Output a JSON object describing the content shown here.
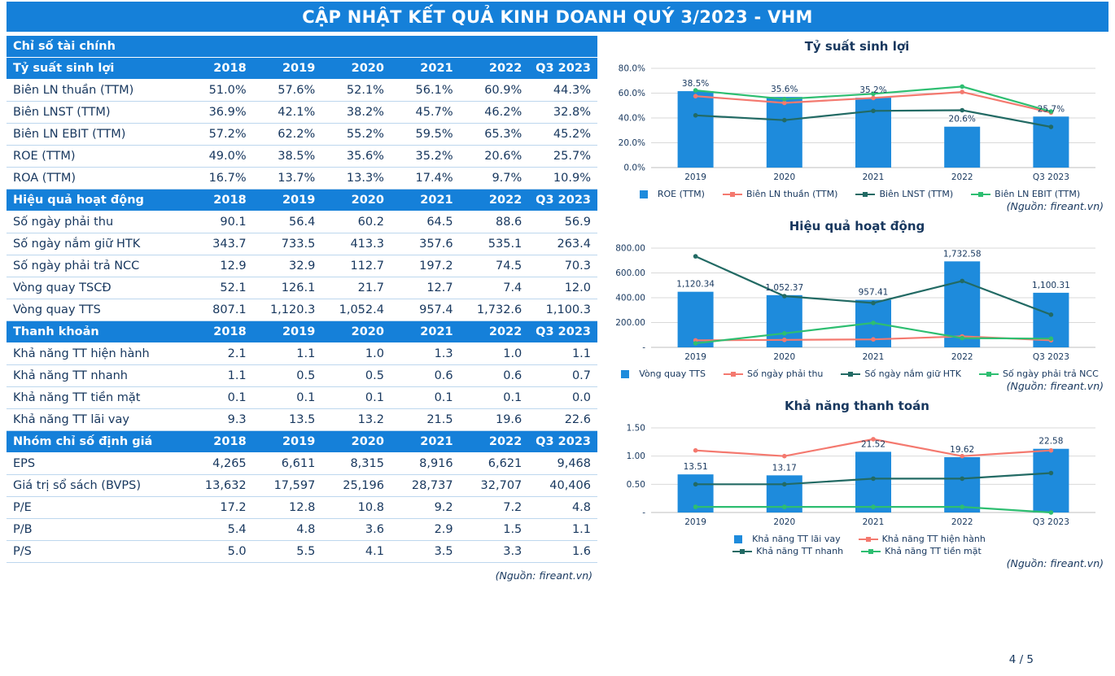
{
  "page": {
    "title": "CẬP NHẬT KẾT QUẢ KINH DOANH QUÝ 3/2023 - VHM",
    "page_number": "4 / 5"
  },
  "colors": {
    "header_blue": "#1580D9",
    "bar_blue": "#1E8BDC",
    "salmon": "#F4796F",
    "dark_teal": "#226A64",
    "green": "#2EBE71",
    "navy": "#17375E",
    "row_border": "#BDD7EE",
    "grid": "#D9D9D9"
  },
  "table": {
    "title": "Chỉ số tài chính",
    "source_note": "(Nguồn: fireant.vn)",
    "col_headers": [
      "2018",
      "2019",
      "2020",
      "2021",
      "2022",
      "Q3 2023"
    ],
    "sections": [
      {
        "header": "Tỷ suất sinh lợi",
        "rows": [
          {
            "label": "Biên LN thuần (TTM)",
            "values": [
              "51.0%",
              "57.6%",
              "52.1%",
              "56.1%",
              "60.9%",
              "44.3%"
            ]
          },
          {
            "label": "Biên LNST (TTM)",
            "values": [
              "36.9%",
              "42.1%",
              "38.2%",
              "45.7%",
              "46.2%",
              "32.8%"
            ]
          },
          {
            "label": "Biên LN EBIT (TTM)",
            "values": [
              "57.2%",
              "62.2%",
              "55.2%",
              "59.5%",
              "65.3%",
              "45.2%"
            ]
          },
          {
            "label": "ROE (TTM)",
            "values": [
              "49.0%",
              "38.5%",
              "35.6%",
              "35.2%",
              "20.6%",
              "25.7%"
            ]
          },
          {
            "label": "ROA (TTM)",
            "values": [
              "16.7%",
              "13.7%",
              "13.3%",
              "17.4%",
              "9.7%",
              "10.9%"
            ]
          }
        ]
      },
      {
        "header": "Hiệu quả hoạt động",
        "rows": [
          {
            "label": "Số ngày phải thu",
            "values": [
              "90.1",
              "56.4",
              "60.2",
              "64.5",
              "88.6",
              "56.9"
            ]
          },
          {
            "label": "Số ngày nắm giữ HTK",
            "values": [
              "343.7",
              "733.5",
              "413.3",
              "357.6",
              "535.1",
              "263.4"
            ]
          },
          {
            "label": "Số ngày phải trả NCC",
            "values": [
              "12.9",
              "32.9",
              "112.7",
              "197.2",
              "74.5",
              "70.3"
            ]
          },
          {
            "label": "Vòng quay TSCĐ",
            "values": [
              "52.1",
              "126.1",
              "21.7",
              "12.7",
              "7.4",
              "12.0"
            ]
          },
          {
            "label": "Vòng quay TTS",
            "values": [
              "807.1",
              "1,120.3",
              "1,052.4",
              "957.4",
              "1,732.6",
              "1,100.3"
            ]
          }
        ]
      },
      {
        "header": "Thanh khoản",
        "rows": [
          {
            "label": "Khả năng TT hiện hành",
            "values": [
              "2.1",
              "1.1",
              "1.0",
              "1.3",
              "1.0",
              "1.1"
            ]
          },
          {
            "label": "Khả năng TT nhanh",
            "values": [
              "1.1",
              "0.5",
              "0.5",
              "0.6",
              "0.6",
              "0.7"
            ]
          },
          {
            "label": "Khả năng TT tiền mặt",
            "values": [
              "0.1",
              "0.1",
              "0.1",
              "0.1",
              "0.1",
              "0.0"
            ]
          },
          {
            "label": "Khả năng TT lãi vay",
            "values": [
              "9.3",
              "13.5",
              "13.2",
              "21.5",
              "19.6",
              "22.6"
            ]
          }
        ]
      },
      {
        "header": "Nhóm chỉ số định giá",
        "rows": [
          {
            "label": "EPS",
            "values": [
              "4,265",
              "6,611",
              "8,315",
              "8,916",
              "6,621",
              "9,468"
            ]
          },
          {
            "label": "Giá trị sổ sách (BVPS)",
            "values": [
              "13,632",
              "17,597",
              "25,196",
              "28,737",
              "32,707",
              "40,406"
            ]
          },
          {
            "label": "P/E",
            "values": [
              "17.2",
              "12.8",
              "10.8",
              "9.2",
              "7.2",
              "4.8"
            ]
          },
          {
            "label": "P/B",
            "values": [
              "5.4",
              "4.8",
              "3.6",
              "2.9",
              "1.5",
              "1.1"
            ]
          },
          {
            "label": "P/S",
            "values": [
              "5.0",
              "5.5",
              "4.1",
              "3.5",
              "3.3",
              "1.6"
            ]
          }
        ]
      }
    ]
  },
  "chart_data": [
    {
      "id": "ty-suat-sinh-loi",
      "type": "bar",
      "title": "Tỷ suất sinh lợi",
      "categories": [
        "2019",
        "2020",
        "2021",
        "2022",
        "Q3 2023"
      ],
      "y_ticks": [
        "0.0%",
        "20.0%",
        "40.0%",
        "60.0%",
        "80.0%"
      ],
      "ylim": [
        0,
        80
      ],
      "bars": {
        "name": "ROE (TTM)",
        "values": [
          38.5,
          35.6,
          35.2,
          20.6,
          25.7
        ],
        "labels": [
          "38.5%",
          "35.6%",
          "35.2%",
          "20.6%",
          "25.7%"
        ],
        "axis_max": 50,
        "color": "#1E8BDC"
      },
      "lines": [
        {
          "name": "Biên LN thuần (TTM)",
          "values": [
            57.6,
            52.1,
            56.1,
            60.9,
            44.3
          ],
          "color": "#F4796F"
        },
        {
          "name": "Biên LNST (TTM)",
          "values": [
            42.1,
            38.2,
            45.7,
            46.2,
            32.8
          ],
          "color": "#226A64"
        },
        {
          "name": "Biên LN EBIT (TTM)",
          "values": [
            62.2,
            55.2,
            59.5,
            65.3,
            45.2
          ],
          "color": "#2EBE71"
        }
      ],
      "legend_rows": [
        [
          {
            "label": "ROE (TTM)",
            "marker": "bar",
            "color": "#1E8BDC"
          },
          {
            "label": "Biên LN thuần (TTM)",
            "marker": "line",
            "color": "#F4796F"
          },
          {
            "label": "Biên LNST (TTM)",
            "marker": "line",
            "color": "#226A64"
          },
          {
            "label": "Biên LN EBIT (TTM)",
            "marker": "line",
            "color": "#2EBE71"
          }
        ]
      ],
      "source_note": "(Nguồn: fireant.vn)"
    },
    {
      "id": "hieu-qua-hoat-dong",
      "type": "bar",
      "title": "Hiệu quả hoạt động",
      "categories": [
        "2019",
        "2020",
        "2021",
        "2022",
        "Q3 2023"
      ],
      "y_ticks": [
        "-",
        "200.00",
        "400.00",
        "600.00",
        "800.00"
      ],
      "ylim": [
        0,
        800
      ],
      "bars": {
        "name": "Vòng quay TTS",
        "values": [
          1120.34,
          1052.37,
          957.41,
          1732.58,
          1100.31
        ],
        "labels": [
          "1,120.34",
          "1,052.37",
          "957.41",
          "1,732.58",
          "1,100.31"
        ],
        "axis_max": 2000,
        "color": "#1E8BDC"
      },
      "lines": [
        {
          "name": "Số ngày phải thu",
          "values": [
            56.4,
            60.2,
            64.5,
            88.6,
            56.9
          ],
          "color": "#F4796F"
        },
        {
          "name": "Số ngày nắm giữ HTK",
          "values": [
            733.5,
            413.3,
            357.6,
            535.1,
            263.4
          ],
          "color": "#226A64"
        },
        {
          "name": "Số ngày phải trả NCC",
          "values": [
            32.9,
            112.7,
            197.2,
            74.5,
            70.3
          ],
          "color": "#2EBE71"
        }
      ],
      "legend_rows": [
        [
          {
            "label": "Vòng quay TTS",
            "marker": "bar",
            "color": "#1E8BDC"
          },
          {
            "label": "Số ngày phải thu",
            "marker": "line",
            "color": "#F4796F"
          },
          {
            "label": "Số ngày nắm giữ HTK",
            "marker": "line",
            "color": "#226A64"
          },
          {
            "label": "Số ngày phải trả NCC",
            "marker": "line",
            "color": "#2EBE71"
          }
        ]
      ],
      "source_note": "(Nguồn: fireant.vn)"
    },
    {
      "id": "kha-nang-thanh-toan",
      "type": "bar",
      "title": "Khả năng thanh toán",
      "categories": [
        "2019",
        "2020",
        "2021",
        "2022",
        "Q3 2023"
      ],
      "y_ticks": [
        "-",
        "0.50",
        "1.00",
        "1.50"
      ],
      "ylim": [
        0,
        1.5
      ],
      "bars": {
        "name": "Khả năng TT lãi vay",
        "values": [
          13.51,
          13.17,
          21.52,
          19.62,
          22.58
        ],
        "labels": [
          "13.51",
          "13.17",
          "21.52",
          "19.62",
          "22.58"
        ],
        "axis_max": 30,
        "color": "#1E8BDC"
      },
      "lines": [
        {
          "name": "Khả năng TT hiện hành",
          "values": [
            1.1,
            1.0,
            1.3,
            1.0,
            1.1
          ],
          "color": "#F4796F"
        },
        {
          "name": "Khả năng TT nhanh",
          "values": [
            0.5,
            0.5,
            0.6,
            0.6,
            0.7
          ],
          "color": "#226A64"
        },
        {
          "name": "Khả năng TT tiền mặt",
          "values": [
            0.1,
            0.1,
            0.1,
            0.1,
            0.0
          ],
          "color": "#2EBE71"
        }
      ],
      "legend_rows": [
        [
          {
            "label": "Khả năng TT lãi vay",
            "marker": "bar",
            "color": "#1E8BDC"
          },
          {
            "label": "Khả năng TT hiện hành",
            "marker": "line",
            "color": "#F4796F"
          }
        ],
        [
          {
            "label": "Khả năng TT nhanh",
            "marker": "line",
            "color": "#226A64"
          },
          {
            "label": "Khả năng TT tiền mặt",
            "marker": "line",
            "color": "#2EBE71"
          }
        ]
      ],
      "source_note": "(Nguồn: fireant.vn)"
    }
  ]
}
